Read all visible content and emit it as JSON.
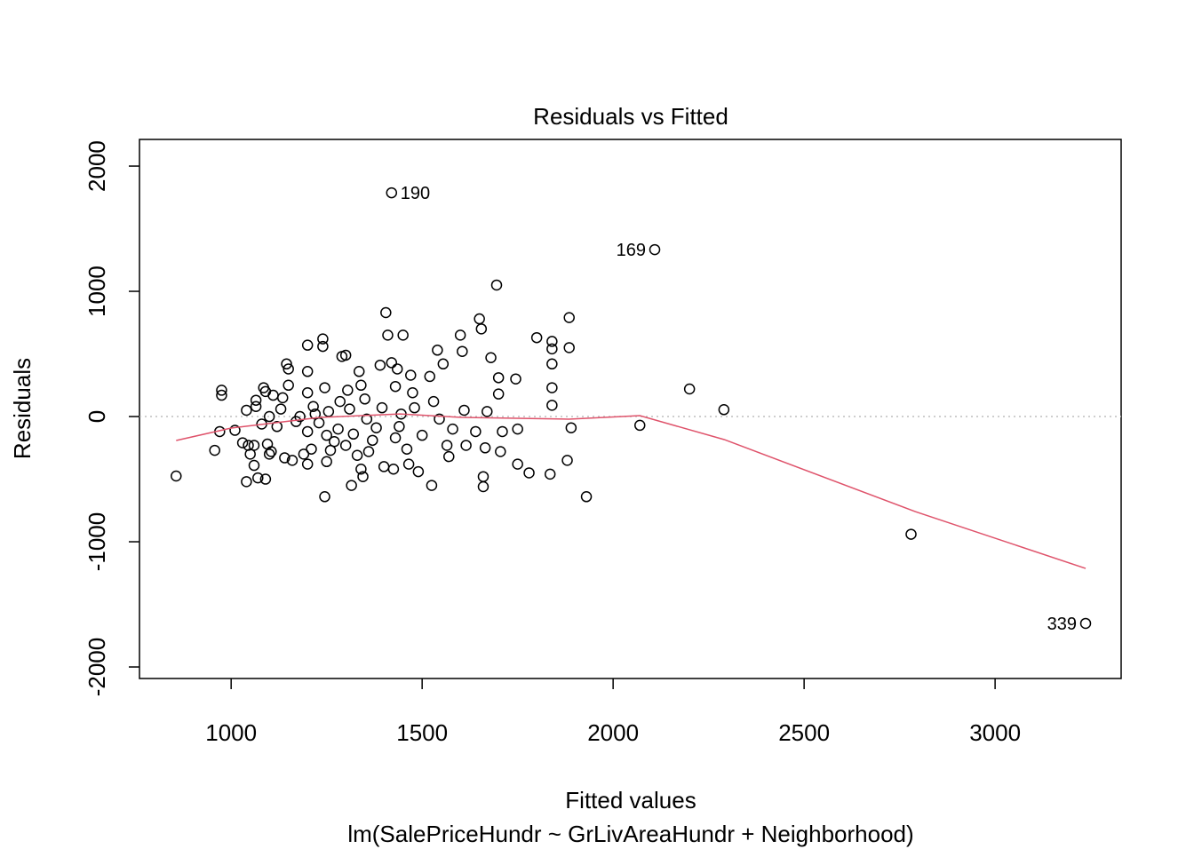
{
  "chart_data": {
    "type": "scatter",
    "title": "Residuals vs Fitted",
    "x_label": "Fitted values",
    "y_label": "Residuals",
    "subtitle": "lm(SalePriceHundr ~ GrLivAreaHundr + Neighborhood)",
    "xlim": [
      760,
      3330
    ],
    "ylim": [
      -2092,
      2213
    ],
    "xticks": [
      1000,
      1500,
      2000,
      2500,
      3000
    ],
    "yticks": [
      -2000,
      -1000,
      0,
      1000,
      2000
    ],
    "color": "#000000",
    "x": [
      856,
      957,
      970,
      975,
      975,
      1010,
      1030,
      1040,
      1040,
      1045,
      1050,
      1060,
      1060,
      1065,
      1065,
      1070,
      1080,
      1085,
      1090,
      1090,
      1095,
      1100,
      1100,
      1105,
      1110,
      1120,
      1130,
      1135,
      1140,
      1145,
      1150,
      1150,
      1160,
      1170,
      1180,
      1190,
      1200,
      1200,
      1200,
      1200,
      1200,
      1210,
      1215,
      1220,
      1230,
      1240,
      1240,
      1245,
      1245,
      1250,
      1250,
      1255,
      1260,
      1270,
      1280,
      1285,
      1290,
      1300,
      1300,
      1305,
      1310,
      1315,
      1320,
      1330,
      1335,
      1340,
      1340,
      1345,
      1350,
      1355,
      1360,
      1370,
      1380,
      1390,
      1395,
      1400,
      1405,
      1410,
      1420,
      1420,
      1425,
      1430,
      1430,
      1435,
      1440,
      1445,
      1450,
      1460,
      1465,
      1470,
      1475,
      1480,
      1490,
      1500,
      1520,
      1525,
      1530,
      1540,
      1545,
      1555,
      1565,
      1570,
      1580,
      1600,
      1605,
      1610,
      1615,
      1640,
      1650,
      1655,
      1660,
      1660,
      1665,
      1670,
      1680,
      1695,
      1700,
      1700,
      1705,
      1710,
      1745,
      1750,
      1750,
      1780,
      1800,
      1835,
      1840,
      1840,
      1840,
      1840,
      1840,
      1880,
      1885,
      1885,
      1890,
      1930,
      2070,
      2109,
      2200,
      2290,
      2780,
      3237
    ],
    "values": [
      -475,
      -270,
      -120,
      210,
      170,
      -110,
      -210,
      -520,
      50,
      -230,
      -300,
      -390,
      -230,
      130,
      80,
      -490,
      -60,
      230,
      -500,
      200,
      -220,
      0,
      -300,
      -280,
      170,
      -80,
      60,
      150,
      -330,
      420,
      380,
      250,
      -350,
      -40,
      0,
      -300,
      570,
      360,
      190,
      -380,
      -120,
      -260,
      80,
      20,
      -50,
      620,
      560,
      230,
      -640,
      -360,
      -150,
      40,
      -270,
      -200,
      -100,
      120,
      480,
      490,
      -230,
      210,
      60,
      -550,
      -140,
      -310,
      360,
      250,
      -420,
      -480,
      140,
      -20,
      -280,
      -190,
      -90,
      410,
      70,
      -400,
      830,
      650,
      1787,
      430,
      -420,
      240,
      -170,
      380,
      -80,
      20,
      650,
      -260,
      -380,
      330,
      190,
      70,
      -440,
      -150,
      320,
      -550,
      120,
      530,
      -20,
      420,
      -230,
      -320,
      -100,
      650,
      520,
      50,
      -230,
      -120,
      780,
      700,
      -560,
      -480,
      -250,
      40,
      470,
      1050,
      310,
      180,
      -280,
      -120,
      300,
      -380,
      -100,
      -450,
      630,
      -460,
      600,
      540,
      420,
      230,
      90,
      -350,
      790,
      550,
      -90,
      -640,
      -70,
      1333,
      220,
      55,
      -940,
      -1652
    ],
    "annotations": [
      {
        "text": "190",
        "x": 1420,
        "y": 1787,
        "side": "right"
      },
      {
        "text": "169",
        "x": 2109,
        "y": 1333,
        "side": "left"
      },
      {
        "text": "339",
        "x": 3237,
        "y": -1652,
        "side": "left"
      }
    ],
    "smooth": {
      "color": "#DF536B",
      "x": [
        856,
        1000,
        1233,
        1442,
        1605,
        1884,
        2070,
        2291,
        2791,
        3237
      ],
      "values": [
        -191,
        -92,
        -7,
        21,
        -7,
        -21,
        7,
        -184,
        -759,
        -1213
      ]
    },
    "reference_line": {
      "value": 0,
      "color": "#bebebe"
    }
  }
}
